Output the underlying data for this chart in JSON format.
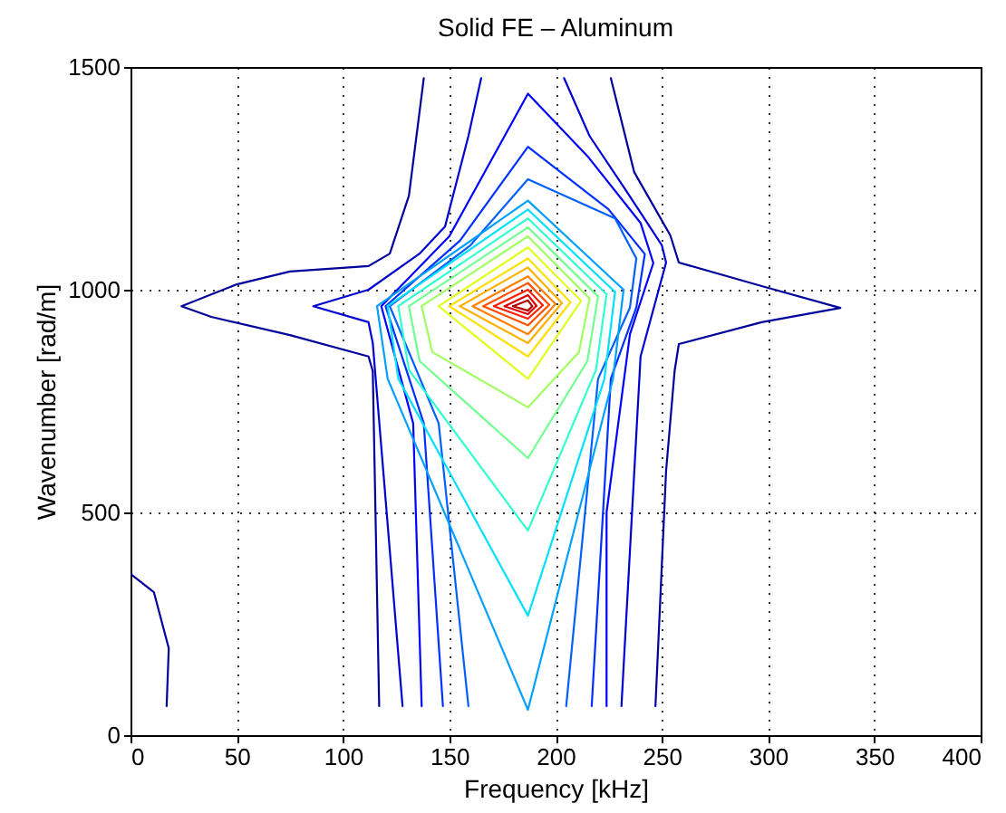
{
  "chart_data": {
    "type": "line",
    "title": "Solid FE – Aluminum",
    "xlabel": "Frequency [kHz]",
    "ylabel": "Wavenumber [rad/m]",
    "xlim": [
      0,
      400
    ],
    "xticks": [
      0,
      50,
      100,
      150,
      200,
      250,
      300,
      350,
      400
    ],
    "ylim": [
      0,
      1500
    ],
    "yticks": [
      0,
      500,
      1000,
      1500
    ],
    "grid": true,
    "line_style": "solid",
    "series": [
      {
        "color": "#00009c",
        "x": [
          138,
          131,
          122,
          112,
          75,
          50,
          24,
          38,
          75,
          112,
          114,
          117
        ],
        "values": [
          1475,
          1211,
          1081,
          1053,
          1041,
          1012,
          963,
          939,
          898,
          850,
          817,
          65
        ]
      },
      {
        "color": "#00009c",
        "x": [
          226,
          237,
          254,
          258,
          297,
          334,
          297,
          258,
          256,
          252,
          247
        ],
        "values": [
          1475,
          1264,
          1122,
          1061,
          1008,
          959,
          927,
          878,
          817,
          593,
          65
        ]
      },
      {
        "color": "#00009c",
        "x": [
          0,
          11,
          18,
          17
        ],
        "values": [
          362,
          321,
          195,
          65
        ]
      },
      {
        "color": "#0000d0",
        "x": [
          165,
          159,
          148,
          136,
          112,
          86,
          112,
          114,
          128
        ],
        "values": [
          1475,
          1345,
          1142,
          1081,
          1000,
          963,
          927,
          880,
          65
        ]
      },
      {
        "color": "#0000d0",
        "x": [
          204,
          216,
          233,
          250,
          252,
          240,
          231
        ],
        "values": [
          1475,
          1345,
          1224,
          1100,
          1061,
          850,
          65
        ]
      },
      {
        "color": "#0000ff",
        "x": [
          137,
          133,
          118,
          150,
          187,
          215,
          240,
          246,
          235,
          224,
          224
        ],
        "values": [
          65,
          700,
          963,
          1120,
          1440,
          1300,
          1150,
          1060,
          900,
          500,
          65
        ]
      },
      {
        "color": "#0030ff",
        "x": [
          147,
          138,
          120,
          155,
          187,
          225,
          242,
          238,
          226,
          217
        ],
        "values": [
          65,
          700,
          963,
          1110,
          1321,
          1180,
          1080,
          960,
          800,
          65
        ]
      },
      {
        "color": "#0060ff",
        "x": [
          159,
          145,
          122,
          160,
          187,
          228,
          238,
          235,
          220,
          205
        ],
        "values": [
          65,
          700,
          963,
          1100,
          1248,
          1160,
          1070,
          960,
          800,
          65
        ]
      },
      {
        "color": "#00a0ff",
        "x": [
          116,
          187,
          232
        ],
        "values": [
          963,
          1200,
          1000
        ]
      },
      {
        "color": "#00a0ff",
        "x": [
          232,
          227,
          187,
          121,
          116
        ],
        "values": [
          1000,
          800,
          57,
          800,
          963
        ]
      },
      {
        "color": "#00e0ff",
        "x": [
          121,
          187,
          228
        ],
        "values": [
          963,
          1180,
          995
        ]
      },
      {
        "color": "#00e0ff",
        "x": [
          228,
          223,
          187,
          126,
          121
        ],
        "values": [
          995,
          800,
          268,
          800,
          963
        ]
      },
      {
        "color": "#30ffcf",
        "x": [
          126,
          187,
          224
        ],
        "values": [
          963,
          1160,
          990
        ]
      },
      {
        "color": "#30ffcf",
        "x": [
          224,
          219,
          187,
          131,
          126
        ],
        "values": [
          990,
          820,
          459,
          820,
          963
        ]
      },
      {
        "color": "#70ff90",
        "x": [
          131,
          187,
          220
        ],
        "values": [
          963,
          1140,
          985
        ]
      },
      {
        "color": "#70ff90",
        "x": [
          220,
          215,
          187,
          136,
          131
        ],
        "values": [
          985,
          840,
          622,
          840,
          963
        ]
      },
      {
        "color": "#a0ff60",
        "x": [
          137,
          187,
          216
        ],
        "values": [
          963,
          1120,
          980
        ]
      },
      {
        "color": "#a0ff60",
        "x": [
          216,
          211,
          187,
          142,
          137
        ],
        "values": [
          980,
          860,
          736,
          860,
          963
        ]
      },
      {
        "color": "#e0ff20",
        "x": [
          145,
          187,
          212
        ],
        "values": [
          963,
          1095,
          975
        ]
      },
      {
        "color": "#e0ff20",
        "x": [
          212,
          187,
          145
        ],
        "values": [
          975,
          800,
          963
        ]
      },
      {
        "color": "#ffe000",
        "x": [
          150,
          187,
          207
        ],
        "values": [
          963,
          1070,
          972
        ]
      },
      {
        "color": "#ffe000",
        "x": [
          207,
          187,
          150
        ],
        "values": [
          972,
          850,
          963
        ]
      },
      {
        "color": "#ffb000",
        "x": [
          155,
          187,
          203
        ],
        "values": [
          963,
          1050,
          970
        ]
      },
      {
        "color": "#ffb000",
        "x": [
          203,
          187,
          155
        ],
        "values": [
          970,
          880,
          963
        ]
      },
      {
        "color": "#ff8000",
        "x": [
          161,
          187,
          200
        ],
        "values": [
          963,
          1030,
          968
        ]
      },
      {
        "color": "#ff8000",
        "x": [
          200,
          187,
          161
        ],
        "values": [
          968,
          900,
          963
        ]
      },
      {
        "color": "#ff5000",
        "x": [
          166,
          187,
          197
        ],
        "values": [
          963,
          1015,
          966
        ]
      },
      {
        "color": "#ff5000",
        "x": [
          197,
          187,
          166
        ],
        "values": [
          966,
          920,
          963
        ]
      },
      {
        "color": "#ff2000",
        "x": [
          171,
          187,
          194
        ],
        "values": [
          963,
          1000,
          965
        ]
      },
      {
        "color": "#ff2000",
        "x": [
          194,
          187,
          171
        ],
        "values": [
          965,
          935,
          963
        ]
      },
      {
        "color": "#e00000",
        "x": [
          176,
          187,
          191
        ],
        "values": [
          963,
          988,
          964
        ]
      },
      {
        "color": "#e00000",
        "x": [
          191,
          187,
          176
        ],
        "values": [
          964,
          945,
          963
        ]
      },
      {
        "color": "#b00000",
        "x": [
          180,
          187,
          189
        ],
        "values": [
          963,
          976,
          963
        ]
      },
      {
        "color": "#b00000",
        "x": [
          189,
          187,
          180
        ],
        "values": [
          963,
          953,
          963
        ]
      }
    ]
  }
}
